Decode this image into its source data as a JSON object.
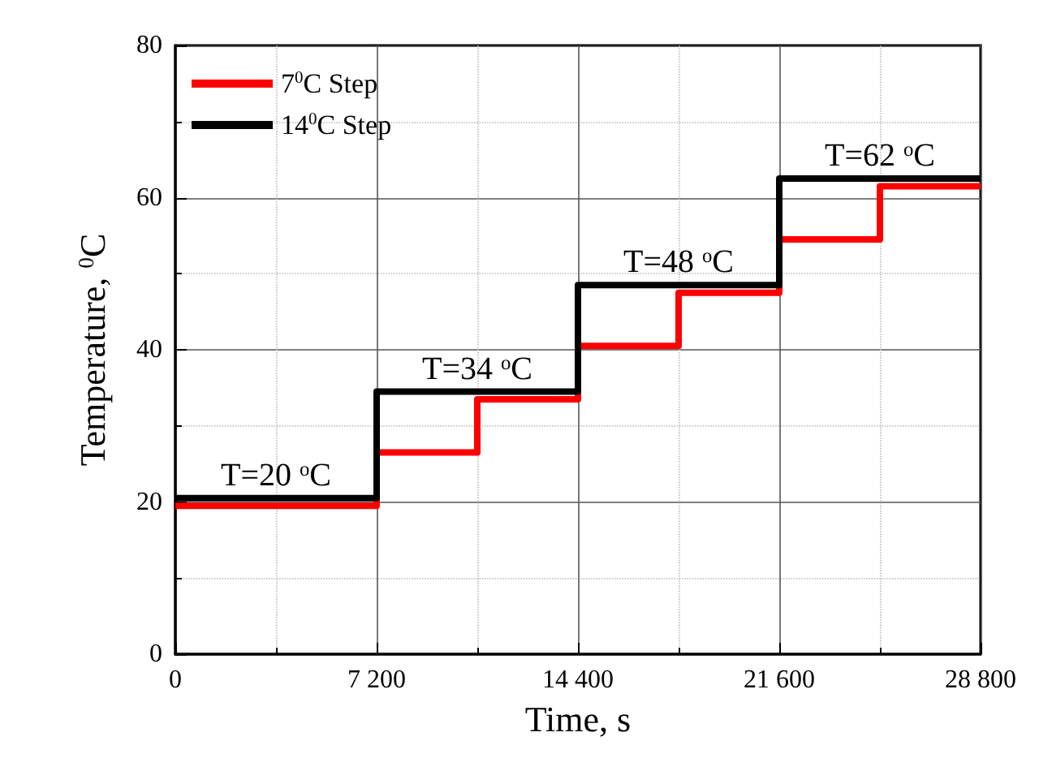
{
  "chart_data": {
    "type": "step",
    "xlabel": "Time, s",
    "ylabel": "Temperature, $^{0}$C",
    "series": [
      {
        "name": "7$^{0}$C Step",
        "color": "#ff0000",
        "x": [
          0,
          7200,
          10800,
          14400,
          18000,
          21600,
          25200,
          28800
        ],
        "values": [
          19.5,
          26.5,
          33.5,
          40.5,
          47.5,
          54.5,
          61.5,
          61.5
        ]
      },
      {
        "name": "14$^{0}$C Step",
        "color": "#000000",
        "x": [
          0,
          7200,
          14400,
          21600,
          28800
        ],
        "values": [
          20.5,
          34.5,
          48.5,
          62.5,
          62.5
        ]
      }
    ],
    "annotations": [
      {
        "text": "T=20 $^{o}$C",
        "x": 3600,
        "y": 20.5
      },
      {
        "text": "T=34 $^{o}$C",
        "x": 10800,
        "y": 34.5
      },
      {
        "text": "T=48 $^{o}$C",
        "x": 18000,
        "y": 48.5
      },
      {
        "text": "T=62 $^{o}$C",
        "x": 25200,
        "y": 62.5
      }
    ],
    "xlim": [
      0,
      28800
    ],
    "xticks": [
      0,
      {
        "value": 7200,
        "label": "7 200"
      },
      {
        "value": 14400,
        "label": "14 400"
      },
      {
        "value": 21600,
        "label": "21 600"
      },
      {
        "value": 28800,
        "label": "28 800"
      }
    ],
    "ylim": [
      0,
      80
    ],
    "yticks": [
      0,
      20,
      40,
      60,
      80
    ],
    "grid": true,
    "legend": "top left",
    "marker": "none",
    "line_style": "solid"
  }
}
